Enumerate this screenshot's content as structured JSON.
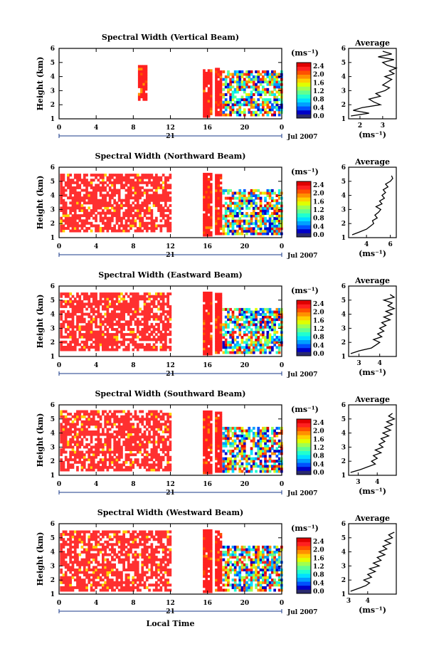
{
  "figure": {
    "xlabel": "Local Time",
    "date_day": "21",
    "date_month_year": "Jul 2007",
    "colorbar_unit": "(ms⁻¹)",
    "avg_title": "Average",
    "avg_xlabel": "(ms⁻¹)",
    "colormap": [
      "#2a2a6e",
      "#0000c8",
      "#0050ff",
      "#00a0ff",
      "#00e0ff",
      "#20ffd0",
      "#60ff90",
      "#a0ff50",
      "#e0ff00",
      "#ffd000",
      "#ff9000",
      "#ff5000",
      "#ff2020",
      "#e00000"
    ],
    "colors": {
      "text": "#000000",
      "dominant": "#ff3030"
    }
  },
  "chart_data": [
    {
      "type": "heatmap",
      "title": "Spectral Width (Vertical Beam)",
      "ylabel": "Height (km)",
      "xlim": [
        0,
        24
      ],
      "ylim": [
        1,
        6
      ],
      "x_ticks": [
        "0",
        "4",
        "8",
        "12",
        "16",
        "20",
        "0"
      ],
      "y_ticks": [
        "1",
        "2",
        "3",
        "4",
        "5",
        "6"
      ],
      "cbar_ticks": [
        "0.0",
        "0.4",
        "0.8",
        "1.2",
        "1.6",
        "2.0",
        "2.4"
      ],
      "data_regions_hours": [
        [
          8.5,
          9.5,
          2.3,
          4.7
        ],
        [
          15.5,
          16.4,
          1.1,
          4.4
        ],
        [
          16.8,
          17.5,
          1.2,
          4.6
        ],
        [
          17.6,
          23.9,
          1.2,
          4.4
        ]
      ],
      "average_profile": {
        "xlim": [
          1.5,
          3.6
        ],
        "xticks": [
          "2",
          "3"
        ],
        "height": [
          1.2,
          1.4,
          1.6,
          1.8,
          2.0,
          2.2,
          2.4,
          2.6,
          2.8,
          3.0,
          3.2,
          3.4,
          3.6,
          3.8,
          4.0,
          4.2,
          4.4,
          4.6,
          4.8,
          5.0,
          5.2,
          5.4,
          5.6,
          5.8
        ],
        "value": [
          1.6,
          2.4,
          1.7,
          2.1,
          2.9,
          2.6,
          2.4,
          2.9,
          2.7,
          3.1,
          3.3,
          3.0,
          3.2,
          3.4,
          3.1,
          3.5,
          3.3,
          3.6,
          3.2,
          3.0,
          3.5,
          2.8,
          3.4,
          3.0
        ]
      }
    },
    {
      "type": "heatmap",
      "title": "Spectral Width (Northward Beam)",
      "ylabel": "Height (km)",
      "xlim": [
        0,
        24
      ],
      "ylim": [
        1,
        6
      ],
      "x_ticks": [
        "0",
        "4",
        "8",
        "12",
        "16",
        "20",
        "0"
      ],
      "y_ticks": [
        "1",
        "2",
        "3",
        "4",
        "5",
        "6"
      ],
      "cbar_ticks": [
        "0.0",
        "0.4",
        "0.8",
        "1.2",
        "1.6",
        "2.0",
        "2.4"
      ],
      "data_regions_hours": [
        [
          0.1,
          12.0,
          1.4,
          5.5
        ],
        [
          15.5,
          16.4,
          1.1,
          5.5
        ],
        [
          16.8,
          17.5,
          1.2,
          5.5
        ],
        [
          17.6,
          23.9,
          1.2,
          4.3
        ]
      ],
      "average_profile": {
        "xlim": [
          2.5,
          6.5
        ],
        "xticks": [
          "4",
          "6"
        ],
        "height": [
          1.2,
          1.4,
          1.6,
          1.8,
          2.0,
          2.2,
          2.4,
          2.6,
          2.8,
          3.0,
          3.2,
          3.4,
          3.6,
          3.8,
          4.0,
          4.2,
          4.4,
          4.6,
          4.8,
          5.0,
          5.2,
          5.4
        ],
        "value": [
          2.8,
          3.4,
          4.0,
          4.3,
          4.6,
          4.5,
          4.9,
          4.7,
          5.0,
          5.2,
          4.8,
          5.3,
          5.1,
          5.5,
          5.3,
          5.6,
          5.4,
          5.8,
          5.6,
          6.0,
          6.2,
          6.1
        ]
      }
    },
    {
      "type": "heatmap",
      "title": "Spectral Width (Eastward Beam)",
      "ylabel": "Height (km)",
      "xlim": [
        0,
        24
      ],
      "ylim": [
        1,
        6
      ],
      "x_ticks": [
        "0",
        "4",
        "8",
        "12",
        "16",
        "20",
        "0"
      ],
      "y_ticks": [
        "1",
        "2",
        "3",
        "4",
        "5",
        "6"
      ],
      "cbar_ticks": [
        "0.0",
        "0.4",
        "0.8",
        "1.2",
        "1.6",
        "2.0",
        "2.4"
      ],
      "data_regions_hours": [
        [
          0.1,
          12.0,
          1.4,
          5.5
        ],
        [
          15.5,
          16.4,
          1.1,
          5.5
        ],
        [
          16.8,
          17.5,
          1.2,
          5.5
        ],
        [
          17.6,
          23.9,
          1.2,
          4.3
        ]
      ],
      "average_profile": {
        "xlim": [
          2.5,
          4.8
        ],
        "xticks": [
          "3",
          "4"
        ],
        "height": [
          1.2,
          1.4,
          1.6,
          1.8,
          2.0,
          2.2,
          2.4,
          2.6,
          2.8,
          3.0,
          3.2,
          3.4,
          3.6,
          3.8,
          4.0,
          4.2,
          4.4,
          4.6,
          4.8,
          5.0,
          5.2,
          5.4
        ],
        "value": [
          2.6,
          3.0,
          3.6,
          3.8,
          4.0,
          3.7,
          4.1,
          3.9,
          4.2,
          4.0,
          4.3,
          4.1,
          4.5,
          4.2,
          4.6,
          4.3,
          4.7,
          4.4,
          4.6,
          4.2,
          4.7,
          4.5
        ]
      }
    },
    {
      "type": "heatmap",
      "title": "Spectral Width (Southward Beam)",
      "ylabel": "Height (km)",
      "xlim": [
        0,
        24
      ],
      "ylim": [
        1,
        6
      ],
      "x_ticks": [
        "0",
        "4",
        "8",
        "12",
        "16",
        "20",
        "0"
      ],
      "y_ticks": [
        "1",
        "2",
        "3",
        "4",
        "5",
        "6"
      ],
      "cbar_ticks": [
        "0.0",
        "0.4",
        "0.8",
        "1.2",
        "1.6",
        "2.0",
        "2.4"
      ],
      "data_regions_hours": [
        [
          0.1,
          12.0,
          1.3,
          5.5
        ],
        [
          15.5,
          16.4,
          1.1,
          5.5
        ],
        [
          16.8,
          17.5,
          1.2,
          5.5
        ],
        [
          17.6,
          23.9,
          1.2,
          4.3
        ]
      ],
      "average_profile": {
        "xlim": [
          2.5,
          5.0
        ],
        "xticks": [
          "3",
          "4"
        ],
        "height": [
          1.2,
          1.4,
          1.6,
          1.8,
          2.0,
          2.2,
          2.4,
          2.6,
          2.8,
          3.0,
          3.2,
          3.4,
          3.6,
          3.8,
          4.0,
          4.2,
          4.4,
          4.6,
          4.8,
          5.0,
          5.2,
          5.4
        ],
        "value": [
          2.6,
          3.1,
          3.5,
          3.9,
          3.7,
          4.0,
          3.8,
          4.2,
          3.9,
          4.3,
          4.1,
          4.4,
          4.2,
          4.6,
          4.3,
          4.7,
          4.4,
          4.8,
          4.5,
          4.9,
          4.6,
          4.8
        ]
      }
    },
    {
      "type": "heatmap",
      "title": "Spectral Width (Westward Beam)",
      "ylabel": "Height (km)",
      "xlim": [
        0,
        24
      ],
      "ylim": [
        1,
        6
      ],
      "x_ticks": [
        "0",
        "4",
        "8",
        "12",
        "16",
        "20",
        "0"
      ],
      "y_ticks": [
        "1",
        "2",
        "3",
        "4",
        "5",
        "6"
      ],
      "cbar_ticks": [
        "0.0",
        "0.4",
        "0.8",
        "1.2",
        "1.6",
        "2.0",
        "2.4"
      ],
      "data_regions_hours": [
        [
          0.1,
          12.0,
          1.2,
          5.5
        ],
        [
          15.5,
          16.4,
          1.1,
          5.5
        ],
        [
          16.8,
          17.5,
          1.2,
          5.5
        ],
        [
          17.6,
          23.9,
          1.2,
          4.3
        ]
      ],
      "average_profile": {
        "xlim": [
          3.0,
          5.5
        ],
        "xticks": [
          "3",
          "4"
        ],
        "height": [
          1.2,
          1.4,
          1.6,
          1.8,
          2.0,
          2.2,
          2.4,
          2.6,
          2.8,
          3.0,
          3.2,
          3.4,
          3.6,
          3.8,
          4.0,
          4.2,
          4.4,
          4.6,
          4.8,
          5.0,
          5.2,
          5.4
        ],
        "value": [
          3.1,
          3.5,
          3.9,
          4.1,
          3.8,
          4.2,
          4.0,
          4.4,
          4.1,
          4.6,
          4.3,
          4.7,
          4.5,
          4.9,
          4.6,
          5.0,
          4.8,
          5.2,
          4.9,
          5.3,
          5.1,
          5.4
        ]
      }
    }
  ]
}
